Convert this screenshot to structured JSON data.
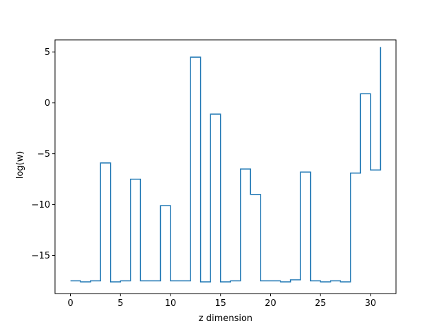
{
  "chart_data": {
    "type": "line",
    "drawstyle": "steps-post",
    "xlabel": "z dimension",
    "ylabel": "log(w)",
    "xlim": [
      -1.55,
      32.55
    ],
    "ylim": [
      -18.75,
      6.2
    ],
    "xticks": [
      0,
      5,
      10,
      15,
      20,
      25,
      30
    ],
    "yticks": [
      -15,
      -10,
      -5,
      0,
      5
    ],
    "ytick_labels": [
      "−15",
      "−10",
      "−5",
      "0",
      "5"
    ],
    "grid": false,
    "legend": "none",
    "series": [
      {
        "color": "#1f77b4",
        "x": [
          0,
          1,
          2,
          3,
          4,
          5,
          6,
          7,
          8,
          9,
          10,
          11,
          12,
          13,
          14,
          15,
          16,
          17,
          18,
          19,
          20,
          21,
          22,
          23,
          24,
          25,
          26,
          27,
          28,
          29,
          30,
          31
        ],
        "y": [
          -17.5,
          -17.6,
          -17.5,
          -5.9,
          -17.6,
          -17.5,
          -7.5,
          -17.5,
          -17.5,
          -10.1,
          -17.5,
          -17.5,
          4.5,
          -17.6,
          -1.1,
          -17.6,
          -17.5,
          -6.5,
          -9.0,
          -17.5,
          -17.5,
          -17.6,
          -17.4,
          -6.8,
          -17.5,
          -17.6,
          -17.5,
          -17.6,
          -6.9,
          0.9,
          -6.6,
          5.5
        ]
      }
    ]
  }
}
